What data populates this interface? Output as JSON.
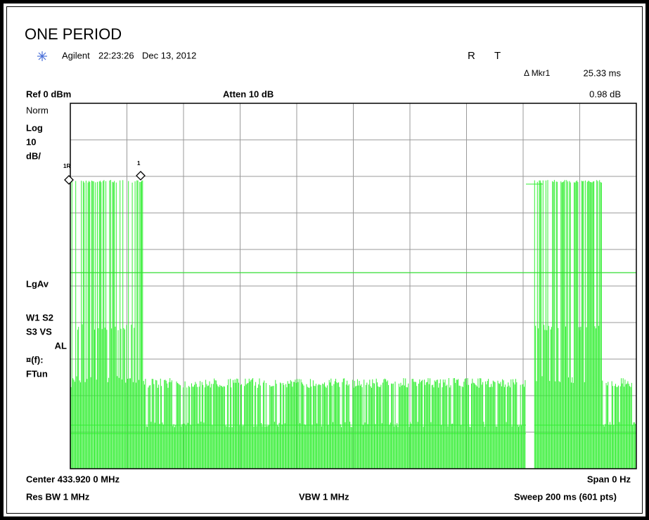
{
  "header": {
    "title": "ONE PERIOD",
    "source": "Agilent",
    "time": "22:23:26",
    "date": "Dec 13, 2012",
    "status": [
      "R",
      "T"
    ]
  },
  "marker": {
    "label": "Δ Mkr1",
    "time": "25.33 ms",
    "level": "0.98 dB",
    "tags": [
      "1R",
      "1"
    ]
  },
  "settings": {
    "ref": "Ref 0 dBm",
    "atten": "Atten 10 dB"
  },
  "side_panel": [
    "Norm",
    "Log",
    "10",
    "dB/",
    "LgAv",
    "W1  S2",
    "S3  VS",
    "AL",
    "¤(f):",
    "FTun"
  ],
  "footer": {
    "center": "Center 433.920 0 MHz",
    "span": "Span 0 Hz",
    "rbw": "Res BW 1 MHz",
    "vbw": "VBW 1 MHz",
    "sweep": "Sweep 200 ms (601 pts)"
  }
}
